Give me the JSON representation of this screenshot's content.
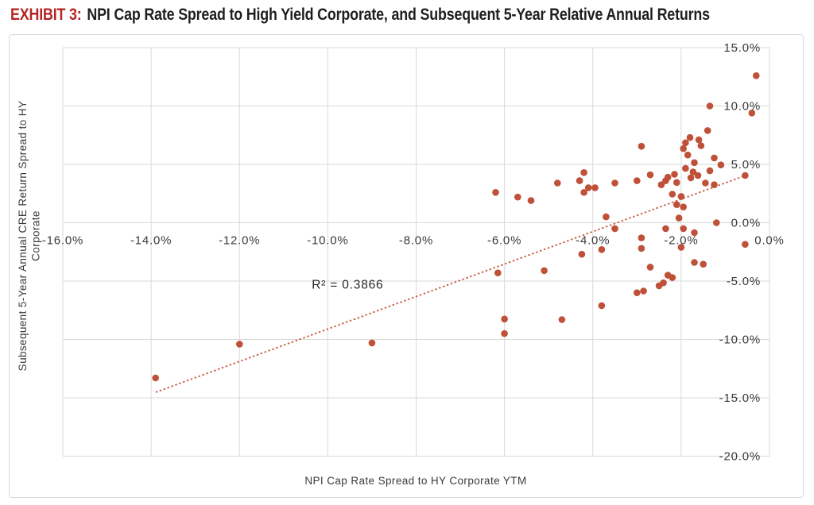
{
  "title": {
    "prefix": "EXHIBIT 3:",
    "text": "NPI Cap Rate Spread to High Yield Corporate, and Subsequent 5-Year Relative Annual Returns"
  },
  "colors": {
    "marker": "#BE5138",
    "trend": "#C65A40",
    "grid": "#D9D9D9",
    "frame": "#D9D9D9",
    "title_prefix": "#B52524",
    "title_text": "#1F1F1F",
    "tick_text": "#3A3A3A"
  },
  "chart_data": {
    "type": "scatter",
    "title": "NPI Cap Rate Spread to High Yield Corporate, and Subsequent 5-Year Relative Annual Returns",
    "xlabel": "NPI Cap Rate Spread to HY Corporate YTM",
    "ylabel": "Subsequent 5-Year Annual CRE Return Spread to HY Corporate",
    "ylabel_wrap": [
      "Subsequent 5-Year Annual CRE Return Spread to HY",
      "Corporate"
    ],
    "xlim": [
      -16,
      0
    ],
    "ylim": [
      -20,
      15
    ],
    "grid": true,
    "legend": false,
    "x_ticks": [
      {
        "value": -16,
        "label": "-16.0%"
      },
      {
        "value": -14,
        "label": "-14.0%"
      },
      {
        "value": -12,
        "label": "-12.0%"
      },
      {
        "value": -10,
        "label": "-10.0%"
      },
      {
        "value": -8,
        "label": "-8.0%"
      },
      {
        "value": -6,
        "label": "-6.0%"
      },
      {
        "value": -4,
        "label": "-4.0%"
      },
      {
        "value": -2,
        "label": "-2.0%"
      },
      {
        "value": 0,
        "label": "0.0%"
      }
    ],
    "y_ticks": [
      {
        "value": 15,
        "label": "15.0%"
      },
      {
        "value": 10,
        "label": "10.0%"
      },
      {
        "value": 5,
        "label": "5.0%"
      },
      {
        "value": 0,
        "label": "0.0%"
      },
      {
        "value": -5,
        "label": "-5.0%"
      },
      {
        "value": -10,
        "label": "-10.0%"
      },
      {
        "value": -15,
        "label": "-15.0%"
      },
      {
        "value": -20,
        "label": "-20.0%"
      }
    ],
    "annotation": {
      "text": "R² = 0.3866",
      "x": -9.55,
      "y": -5.3
    },
    "trendline": {
      "style": "dotted",
      "x1": -13.88,
      "y1": -14.5,
      "x2": -0.54,
      "y2": 4.05
    },
    "points": [
      [
        -13.9,
        -13.3
      ],
      [
        -12.0,
        -10.4
      ],
      [
        -9.0,
        -10.3
      ],
      [
        -6.2,
        2.6
      ],
      [
        -6.15,
        -4.3
      ],
      [
        -6.0,
        -8.25
      ],
      [
        -6.0,
        -9.5
      ],
      [
        -5.7,
        2.2
      ],
      [
        -5.4,
        1.9
      ],
      [
        -5.1,
        -4.1
      ],
      [
        -4.8,
        3.4
      ],
      [
        -4.7,
        -8.3
      ],
      [
        -4.3,
        3.6
      ],
      [
        -4.25,
        -2.7
      ],
      [
        -4.2,
        4.3
      ],
      [
        -4.2,
        2.6
      ],
      [
        -4.1,
        3.0
      ],
      [
        -3.95,
        3.0
      ],
      [
        -3.8,
        -2.3
      ],
      [
        -3.8,
        -7.1
      ],
      [
        -3.7,
        0.5
      ],
      [
        -3.5,
        3.4
      ],
      [
        -3.5,
        -0.5
      ],
      [
        -3.0,
        3.6
      ],
      [
        -3.0,
        -6.0
      ],
      [
        -2.9,
        6.55
      ],
      [
        -2.9,
        -1.3
      ],
      [
        -2.9,
        -2.2
      ],
      [
        -2.85,
        -5.85
      ],
      [
        -2.7,
        4.1
      ],
      [
        -2.7,
        -3.8
      ],
      [
        -2.5,
        -5.4
      ],
      [
        -2.4,
        -5.15
      ],
      [
        -2.45,
        3.25
      ],
      [
        -2.35,
        3.6
      ],
      [
        -2.35,
        -0.5
      ],
      [
        -2.3,
        3.9
      ],
      [
        -2.3,
        -4.5
      ],
      [
        -2.2,
        -4.7
      ],
      [
        -2.15,
        4.15
      ],
      [
        -2.2,
        2.45
      ],
      [
        -2.1,
        3.45
      ],
      [
        -2.1,
        1.55
      ],
      [
        -2.05,
        0.4
      ],
      [
        -2.0,
        2.25
      ],
      [
        -2.0,
        -2.1
      ],
      [
        -1.95,
        6.35
      ],
      [
        -1.95,
        1.35
      ],
      [
        -1.95,
        -0.5
      ],
      [
        -1.9,
        6.85
      ],
      [
        -1.9,
        4.65
      ],
      [
        -1.85,
        5.8
      ],
      [
        -1.8,
        7.3
      ],
      [
        -1.78,
        3.85
      ],
      [
        -1.73,
        4.35
      ],
      [
        -1.7,
        5.15
      ],
      [
        -1.7,
        -0.85
      ],
      [
        -1.7,
        -3.4
      ],
      [
        -1.62,
        4.05
      ],
      [
        -1.6,
        7.1
      ],
      [
        -1.55,
        6.6
      ],
      [
        -1.5,
        -3.55
      ],
      [
        -1.45,
        3.4
      ],
      [
        -1.4,
        7.9
      ],
      [
        -1.35,
        10.0
      ],
      [
        -1.35,
        4.45
      ],
      [
        -1.25,
        5.55
      ],
      [
        -1.25,
        3.25
      ],
      [
        -1.1,
        4.95
      ],
      [
        -1.2,
        0.0
      ],
      [
        -0.55,
        4.05
      ],
      [
        -0.55,
        -1.85
      ],
      [
        -0.4,
        9.4
      ],
      [
        -0.3,
        12.6
      ]
    ]
  }
}
